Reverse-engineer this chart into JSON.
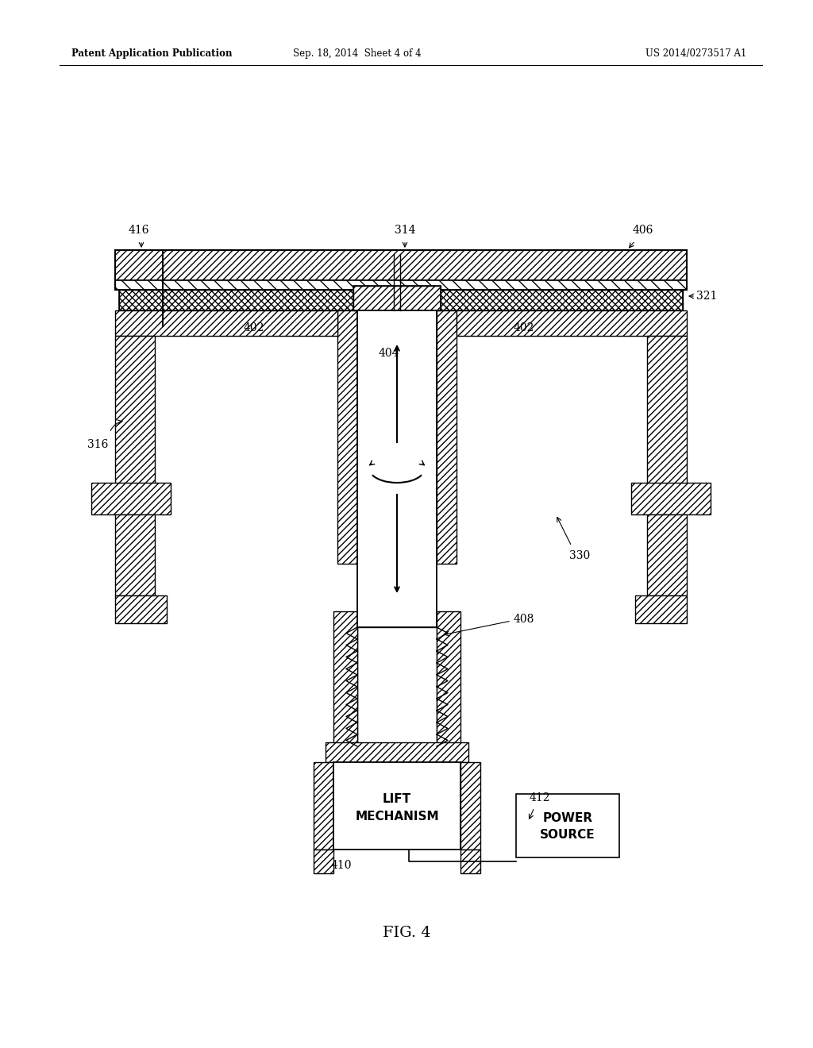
{
  "bg_color": "#ffffff",
  "header_left": "Patent Application Publication",
  "header_mid": "Sep. 18, 2014  Sheet 4 of 4",
  "header_right": "US 2014/0273517 A1",
  "fig_label": "FIG. 4"
}
